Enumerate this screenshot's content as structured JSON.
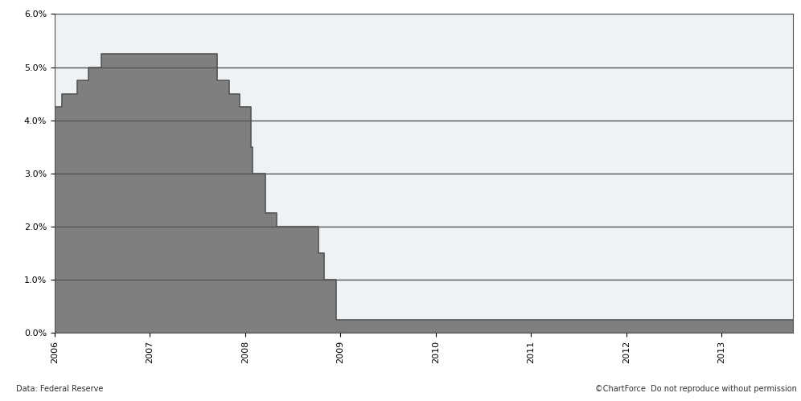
{
  "chart_data": {
    "type": "area",
    "x": [
      2006.0,
      2006.08,
      2006.24,
      2006.36,
      2006.49,
      2007.71,
      2007.83,
      2007.94,
      2008.06,
      2008.08,
      2008.21,
      2008.33,
      2008.77,
      2008.83,
      2008.96,
      2013.75
    ],
    "values": [
      4.25,
      4.5,
      4.75,
      5.0,
      5.25,
      4.75,
      4.5,
      4.25,
      3.5,
      3.0,
      2.25,
      2.0,
      1.5,
      1.0,
      0.25,
      0.25
    ],
    "color": "#7f7f7f",
    "xlim": [
      2006,
      2013.75
    ],
    "xticks": [
      2006,
      2007,
      2008,
      2009,
      2010,
      2011,
      2012,
      2013
    ],
    "ylim": [
      0,
      6
    ],
    "yticks": [
      {
        "value": 0,
        "label": "0.0%"
      },
      {
        "value": 1,
        "label": "1.0%"
      },
      {
        "value": 2,
        "label": "2.0%"
      },
      {
        "value": 3,
        "label": "3.0%"
      },
      {
        "value": 4,
        "label": "4.0%"
      },
      {
        "value": 5,
        "label": "5.0%"
      },
      {
        "value": 6,
        "label": "6.0%"
      }
    ],
    "grid": true,
    "annotations": [
      "Data: Federal Reserve",
      "©ChartForce  Do not reproduce without permission"
    ]
  }
}
